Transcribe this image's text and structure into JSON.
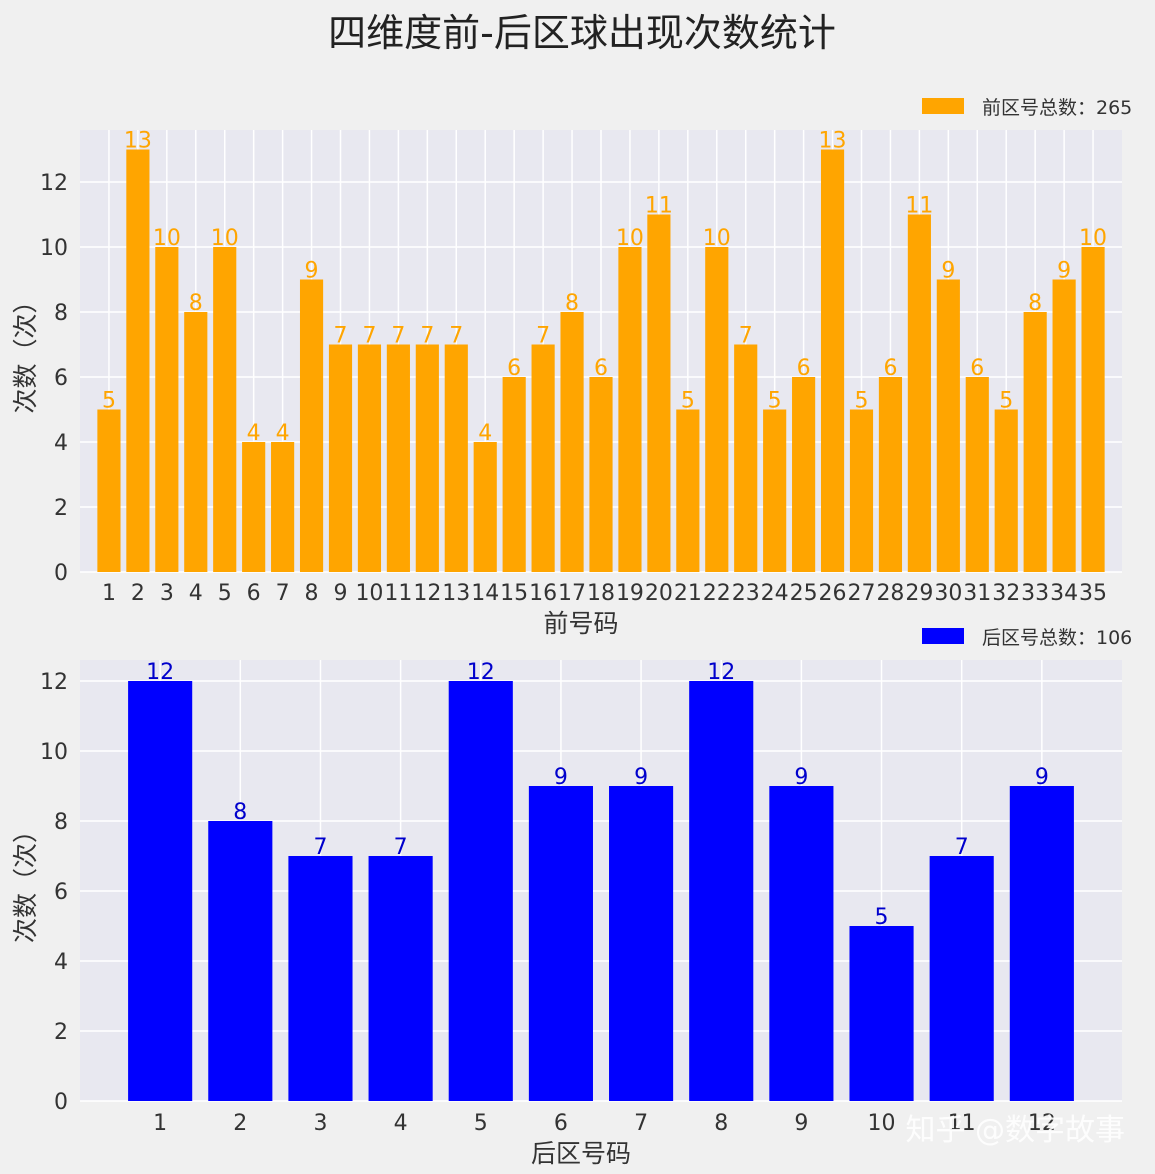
{
  "title": "四维度前-后区球出现次数统计",
  "watermark": "知乎 @数字故事",
  "chart_data": [
    {
      "type": "bar",
      "color": "#ffa500",
      "legend": "前区号总数：265",
      "legend_position": "top-right",
      "xlabel": "前号码",
      "ylabel": "次数（次）",
      "ylim": [
        0,
        13.6
      ],
      "yticks": [
        0,
        2,
        4,
        6,
        8,
        10,
        12
      ],
      "grid": true,
      "categories": [
        "1",
        "2",
        "3",
        "4",
        "5",
        "6",
        "7",
        "8",
        "9",
        "10",
        "11",
        "12",
        "13",
        "14",
        "15",
        "16",
        "17",
        "18",
        "19",
        "20",
        "21",
        "22",
        "23",
        "24",
        "25",
        "26",
        "27",
        "28",
        "29",
        "30",
        "31",
        "32",
        "33",
        "34",
        "35"
      ],
      "values": [
        5,
        13,
        10,
        8,
        10,
        4,
        4,
        9,
        7,
        7,
        7,
        7,
        7,
        4,
        6,
        7,
        8,
        6,
        10,
        11,
        5,
        10,
        7,
        5,
        6,
        13,
        5,
        6,
        11,
        9,
        6,
        5,
        8,
        9,
        10
      ]
    },
    {
      "type": "bar",
      "color": "#0000ff",
      "label_color": "#0000cc",
      "legend": "后区号总数：106",
      "legend_position": "top-right",
      "xlabel": "后区号码",
      "ylabel": "次数（次）",
      "ylim": [
        0,
        12.6
      ],
      "yticks": [
        0,
        2,
        4,
        6,
        8,
        10,
        12
      ],
      "grid": true,
      "categories": [
        "1",
        "2",
        "3",
        "4",
        "5",
        "6",
        "7",
        "8",
        "9",
        "10",
        "11",
        "12"
      ],
      "values": [
        12,
        8,
        7,
        7,
        12,
        9,
        9,
        12,
        9,
        5,
        7,
        9
      ]
    }
  ]
}
